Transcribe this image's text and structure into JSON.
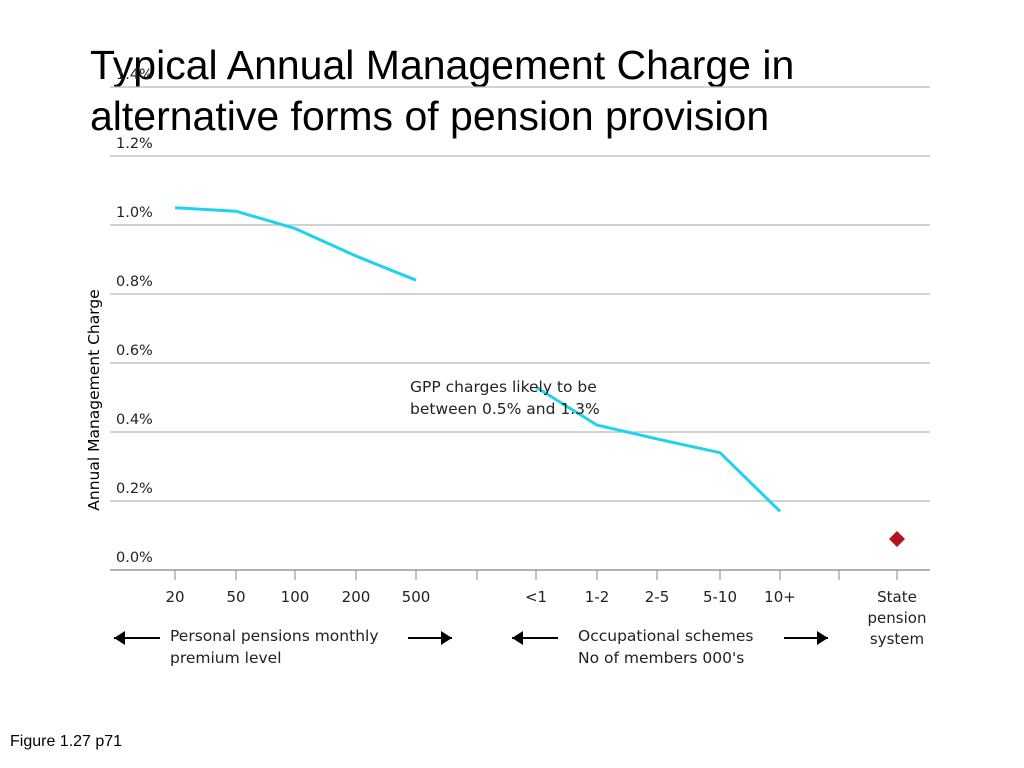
{
  "slide": {
    "title_line1": "Typical Annual Management Charge in",
    "title_line2": "alternative forms of pension provision",
    "caption": "Figure 1.27 p71"
  },
  "chart_data": {
    "type": "line",
    "title": "",
    "ylabel": "Annual Management Charge",
    "ylim": [
      0,
      1.4
    ],
    "y_ticks": [
      "0.0%",
      "0.2%",
      "0.4%",
      "0.6%",
      "0.8%",
      "1.0%",
      "1.2%",
      "1.4%"
    ],
    "grid": true,
    "categories": [
      "20",
      "50",
      "100",
      "200",
      "500",
      "<1",
      "1-2",
      "2-5",
      "5-10",
      "10+",
      "State pension system"
    ],
    "category_label_lines": [
      [
        "20"
      ],
      [
        "50"
      ],
      [
        "100"
      ],
      [
        "200"
      ],
      [
        "500"
      ],
      [
        "<1"
      ],
      [
        "1-2"
      ],
      [
        "2-5"
      ],
      [
        "5-10"
      ],
      [
        "10+"
      ],
      [
        "State",
        "pension",
        "system"
      ]
    ],
    "series": [
      {
        "values": [
          1.05,
          1.04,
          0.99,
          0.91,
          0.84,
          null,
          null,
          null,
          null,
          null,
          null
        ]
      },
      {
        "values": [
          null,
          null,
          null,
          null,
          null,
          0.53,
          0.42,
          0.38,
          0.34,
          0.17,
          null
        ]
      },
      {
        "values": [
          null,
          null,
          null,
          null,
          null,
          null,
          null,
          null,
          null,
          null,
          0.09
        ]
      }
    ],
    "series_colors": [
      "#1fd3ee",
      "#1fd3ee",
      "#b0141e"
    ],
    "annotation_lines": [
      "GPP charges likely to be",
      "between 0.5% and 1.3%"
    ],
    "group_labels": [
      {
        "lines": [
          "Personal pensions monthly",
          "premium level"
        ]
      },
      {
        "lines": [
          "Occupational schemes",
          "No of members 000's"
        ]
      }
    ]
  }
}
